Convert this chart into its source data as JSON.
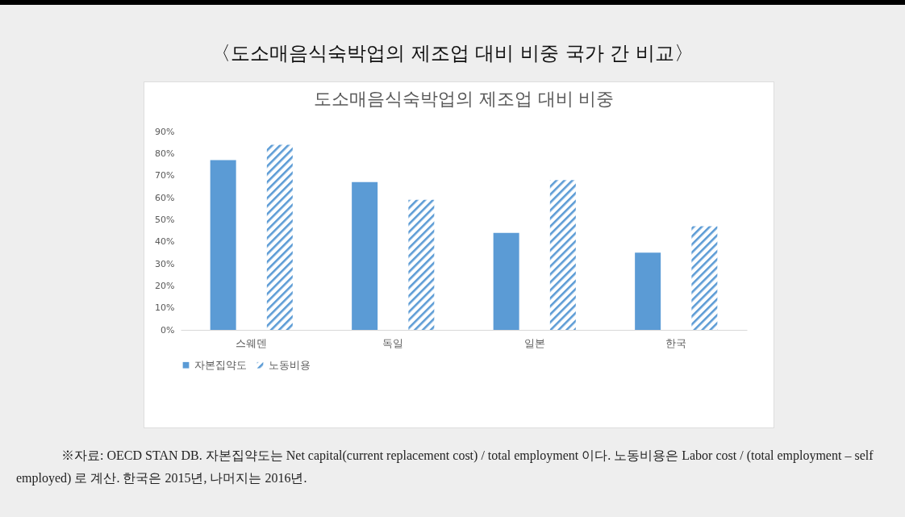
{
  "chart_data": {
    "type": "bar",
    "title": "〈도소매음식숙박업의 제조업 대비 비중 국가 간 비교〉",
    "subtitle": "도소매음식숙박업의 제조업 대비 비중",
    "categories": [
      "스웨덴",
      "독일",
      "일본",
      "한국"
    ],
    "series": [
      {
        "name": "자본집약도",
        "color": "#5b9bd5",
        "values": [
          77,
          67,
          44,
          35
        ]
      },
      {
        "name": "노동비용",
        "color": "#5b9bd5",
        "values": [
          84,
          59,
          68,
          47
        ]
      }
    ],
    "ylim": [
      0,
      90
    ],
    "yticks": [
      {
        "value": 0,
        "label": "0%"
      },
      {
        "value": 10,
        "label": "10%"
      },
      {
        "value": 20,
        "label": "20%"
      },
      {
        "value": 30,
        "label": "30%"
      },
      {
        "value": 40,
        "label": "40%"
      },
      {
        "value": 50,
        "label": "50%"
      },
      {
        "value": 60,
        "label": "60%"
      },
      {
        "value": 70,
        "label": "70%"
      },
      {
        "value": 80,
        "label": "80%"
      },
      {
        "value": 90,
        "label": "90%"
      }
    ],
    "grid": false,
    "legend": "bottom",
    "annotations": [
      "※자료: OECD STAN DB. 자본집약도는 Net capital(current replacement cost) / total employment 이다. 노동비용은 Labor cost / (total employment – self employed) 로 계산. 한국은 2015년, 나머지는 2016년."
    ]
  }
}
